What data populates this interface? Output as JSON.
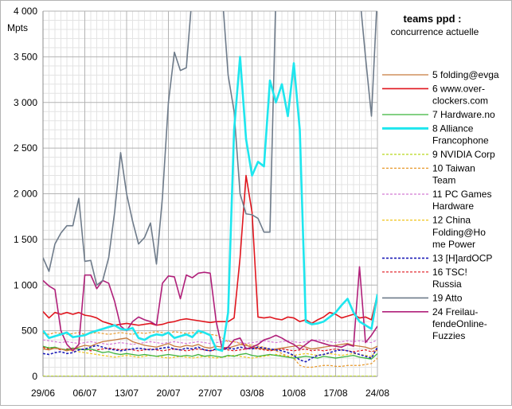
{
  "chart_data": {
    "type": "line",
    "title": "teams ppd :",
    "subtitle": "concurrence actuelle",
    "ylabel": "Mpts",
    "xlabel": "",
    "ylim": [
      0,
      4000
    ],
    "yticks": [
      0,
      500,
      1000,
      1500,
      2000,
      2500,
      3000,
      3500,
      4000
    ],
    "ytick_labels": [
      "0",
      "500",
      "1 000",
      "1 500",
      "2 000",
      "2 500",
      "3 000",
      "3 500",
      "4 000"
    ],
    "xlim": [
      0,
      56
    ],
    "xticks": [
      0,
      7,
      14,
      21,
      28,
      35,
      42,
      49,
      56
    ],
    "xtick_labels": [
      "29/06",
      "06/07",
      "13/07",
      "20/07",
      "27/07",
      "03/08",
      "10/08",
      "17/08",
      "24/08"
    ],
    "grid": true,
    "legend_position": "right",
    "series": [
      {
        "name": "5 folding@evga",
        "color": "#c87a3c",
        "dash": "solid",
        "width": 1.3,
        "values": [
          300,
          290,
          310,
          300,
          280,
          300,
          320,
          340,
          330,
          360,
          380,
          390,
          400,
          410,
          420,
          380,
          360,
          340,
          330,
          320,
          340,
          360,
          330,
          320,
          340,
          330,
          350,
          320,
          310,
          330,
          320,
          310,
          330,
          350,
          340,
          320,
          310,
          300,
          290,
          300,
          310,
          320,
          330,
          340,
          320,
          300,
          310,
          320,
          330,
          340,
          350,
          360,
          340,
          330,
          320,
          300,
          330
        ]
      },
      {
        "name": "6 www.over-clockers.com",
        "color": "#e0161e",
        "dash": "solid",
        "width": 1.6,
        "values": [
          710,
          640,
          700,
          680,
          700,
          680,
          700,
          670,
          660,
          640,
          600,
          580,
          560,
          570,
          580,
          570,
          560,
          570,
          580,
          560,
          570,
          590,
          600,
          620,
          630,
          620,
          610,
          600,
          590,
          600,
          600,
          600,
          640,
          1300,
          2200,
          1800,
          650,
          640,
          650,
          630,
          620,
          650,
          640,
          600,
          620,
          580,
          620,
          650,
          700,
          680,
          640,
          660,
          680,
          640,
          650,
          620,
          900
        ]
      },
      {
        "name": "7 Hardware.no",
        "color": "#3bb33b",
        "dash": "solid",
        "width": 1.3,
        "values": [
          330,
          310,
          320,
          300,
          290,
          310,
          300,
          290,
          300,
          280,
          260,
          270,
          250,
          240,
          250,
          240,
          230,
          240,
          230,
          220,
          230,
          240,
          230,
          220,
          230,
          220,
          240,
          220,
          230,
          220,
          210,
          230,
          220,
          240,
          250,
          230,
          220,
          230,
          240,
          230,
          220,
          210,
          200,
          210,
          220,
          210,
          200,
          220,
          210,
          200,
          210,
          220,
          230,
          210,
          200,
          190,
          250
        ]
      },
      {
        "name": "8 Alliance Francophone",
        "color": "#1ee6ee",
        "dash": "solid",
        "width": 2.6,
        "values": [
          500,
          420,
          440,
          460,
          480,
          430,
          440,
          450,
          480,
          500,
          520,
          540,
          560,
          520,
          510,
          530,
          420,
          400,
          440,
          460,
          450,
          480,
          420,
          440,
          460,
          430,
          500,
          480,
          450,
          300,
          280,
          700,
          2700,
          3500,
          2600,
          2200,
          2350,
          2300,
          3240,
          3000,
          3200,
          2850,
          3430,
          2700,
          600,
          570,
          580,
          600,
          650,
          700,
          780,
          850,
          700,
          600,
          560,
          520,
          900
        ]
      },
      {
        "name": "9 NVIDIA Corp",
        "color": "#b8d81a",
        "dash": "dashed",
        "width": 1.2,
        "values": [
          2,
          2,
          2,
          2,
          2,
          2,
          2,
          2,
          2,
          2,
          2,
          2,
          2,
          2,
          2,
          2,
          2,
          2,
          2,
          2,
          2,
          2,
          2,
          2,
          2,
          2,
          2,
          2,
          2,
          2,
          2,
          2,
          2,
          2,
          2,
          2,
          2,
          2,
          2,
          2,
          2,
          2,
          2,
          2,
          2,
          2,
          2,
          2,
          2,
          2,
          2,
          2,
          2,
          2,
          2,
          2,
          2
        ]
      },
      {
        "name": "10 Taiwan Team",
        "color": "#e8982a",
        "dash": "dashed",
        "width": 1.2,
        "values": [
          470,
          460,
          480,
          470,
          460,
          470,
          480,
          460,
          470,
          480,
          470,
          460,
          470,
          480,
          470,
          460,
          480,
          470,
          480,
          490,
          480,
          470,
          490,
          480,
          470,
          480,
          470,
          480,
          460,
          450,
          420,
          380,
          380,
          360,
          350,
          340,
          330,
          320,
          300,
          280,
          250,
          220,
          200,
          120,
          100,
          100,
          110,
          120,
          120,
          110,
          110,
          120,
          120,
          120,
          130,
          140,
          200
        ]
      },
      {
        "name": "11 PC Games Hardware",
        "color": "#d47ad4",
        "dash": "dashed",
        "width": 1.2,
        "values": [
          400,
          390,
          380,
          370,
          380,
          370,
          360,
          370,
          380,
          370,
          360,
          350,
          360,
          370,
          360,
          350,
          360,
          370,
          380,
          370,
          360,
          370,
          380,
          370,
          360,
          370,
          380,
          370,
          360,
          370,
          380,
          390,
          380,
          370,
          360,
          370,
          380,
          390,
          380,
          370,
          380,
          390,
          380,
          370,
          380,
          390,
          400,
          390,
          380,
          370,
          380,
          390,
          380,
          390,
          380,
          370,
          400
        ]
      },
      {
        "name": "12 China Folding@Home Power",
        "color": "#f0c419",
        "dash": "dashed",
        "width": 1.2,
        "values": [
          300,
          320,
          310,
          300,
          290,
          280,
          270,
          260,
          250,
          240,
          230,
          220,
          210,
          220,
          230,
          220,
          210,
          220,
          230,
          220,
          210,
          200,
          210,
          220,
          210,
          200,
          210,
          220,
          210,
          200,
          210,
          220,
          230,
          220,
          210,
          200,
          210,
          220,
          230,
          240,
          230,
          220,
          230,
          240,
          250,
          240,
          230,
          240,
          250,
          240,
          230,
          240,
          250,
          240,
          230,
          220,
          300
        ]
      },
      {
        "name": "13 [H]ardOCP",
        "color": "#1c1cb8",
        "dash": "dashed",
        "width": 1.6,
        "values": [
          250,
          240,
          260,
          270,
          250,
          260,
          290,
          300,
          320,
          340,
          320,
          300,
          290,
          280,
          290,
          300,
          310,
          300,
          290,
          300,
          310,
          320,
          300,
          290,
          310,
          300,
          320,
          290,
          280,
          300,
          290,
          310,
          300,
          320,
          310,
          300,
          320,
          310,
          300,
          290,
          280,
          260,
          230,
          180,
          160,
          200,
          230,
          240,
          260,
          280,
          290,
          280,
          260,
          240,
          220,
          200,
          320
        ]
      },
      {
        "name": "16 TSC! Russia",
        "color": "#e0161e",
        "dash": "dashed",
        "width": 1.2,
        "values": [
          320,
          300,
          310,
          290,
          300,
          310,
          290,
          300,
          280,
          290,
          300,
          310,
          300,
          290,
          300,
          290,
          280,
          290,
          300,
          290,
          280,
          290,
          300,
          290,
          280,
          290,
          300,
          290,
          280,
          290,
          300,
          290,
          280,
          290,
          300,
          310,
          300,
          290,
          280,
          290,
          300,
          290,
          280,
          290,
          300,
          280,
          290,
          280,
          290,
          300,
          290,
          280,
          270,
          280,
          290,
          270,
          290
        ]
      },
      {
        "name": "19 Atto",
        "color": "#6e7b8a",
        "dash": "solid",
        "width": 1.6,
        "values": [
          1300,
          1150,
          1450,
          1570,
          1650,
          1650,
          1950,
          1260,
          1270,
          1000,
          1050,
          1300,
          1800,
          2450,
          2000,
          1700,
          1450,
          1520,
          1680,
          1230,
          1960,
          3000,
          3550,
          3350,
          3380,
          4200,
          4200,
          4200,
          4200,
          4200,
          4200,
          3300,
          2900,
          2000,
          1780,
          1770,
          1730,
          1580,
          1580,
          4200,
          4200,
          4200,
          4200,
          4200,
          4200,
          4200,
          4200,
          4200,
          4200,
          4200,
          4200,
          4200,
          4200,
          4200,
          3500,
          2850,
          4200
        ]
      },
      {
        "name": "24 Freilau-fendeOnline-Fuzzies",
        "color": "#b0207a",
        "dash": "solid",
        "width": 1.6,
        "values": [
          1050,
          990,
          950,
          500,
          350,
          280,
          350,
          1110,
          1110,
          960,
          1050,
          1020,
          820,
          550,
          500,
          600,
          650,
          620,
          600,
          560,
          1020,
          1100,
          1090,
          850,
          1110,
          1080,
          1130,
          1140,
          1130,
          600,
          300,
          320,
          400,
          420,
          300,
          320,
          350,
          400,
          420,
          450,
          420,
          380,
          350,
          300,
          350,
          400,
          380,
          360,
          340,
          330,
          320,
          350,
          330,
          1200,
          370,
          450,
          550
        ]
      }
    ]
  }
}
